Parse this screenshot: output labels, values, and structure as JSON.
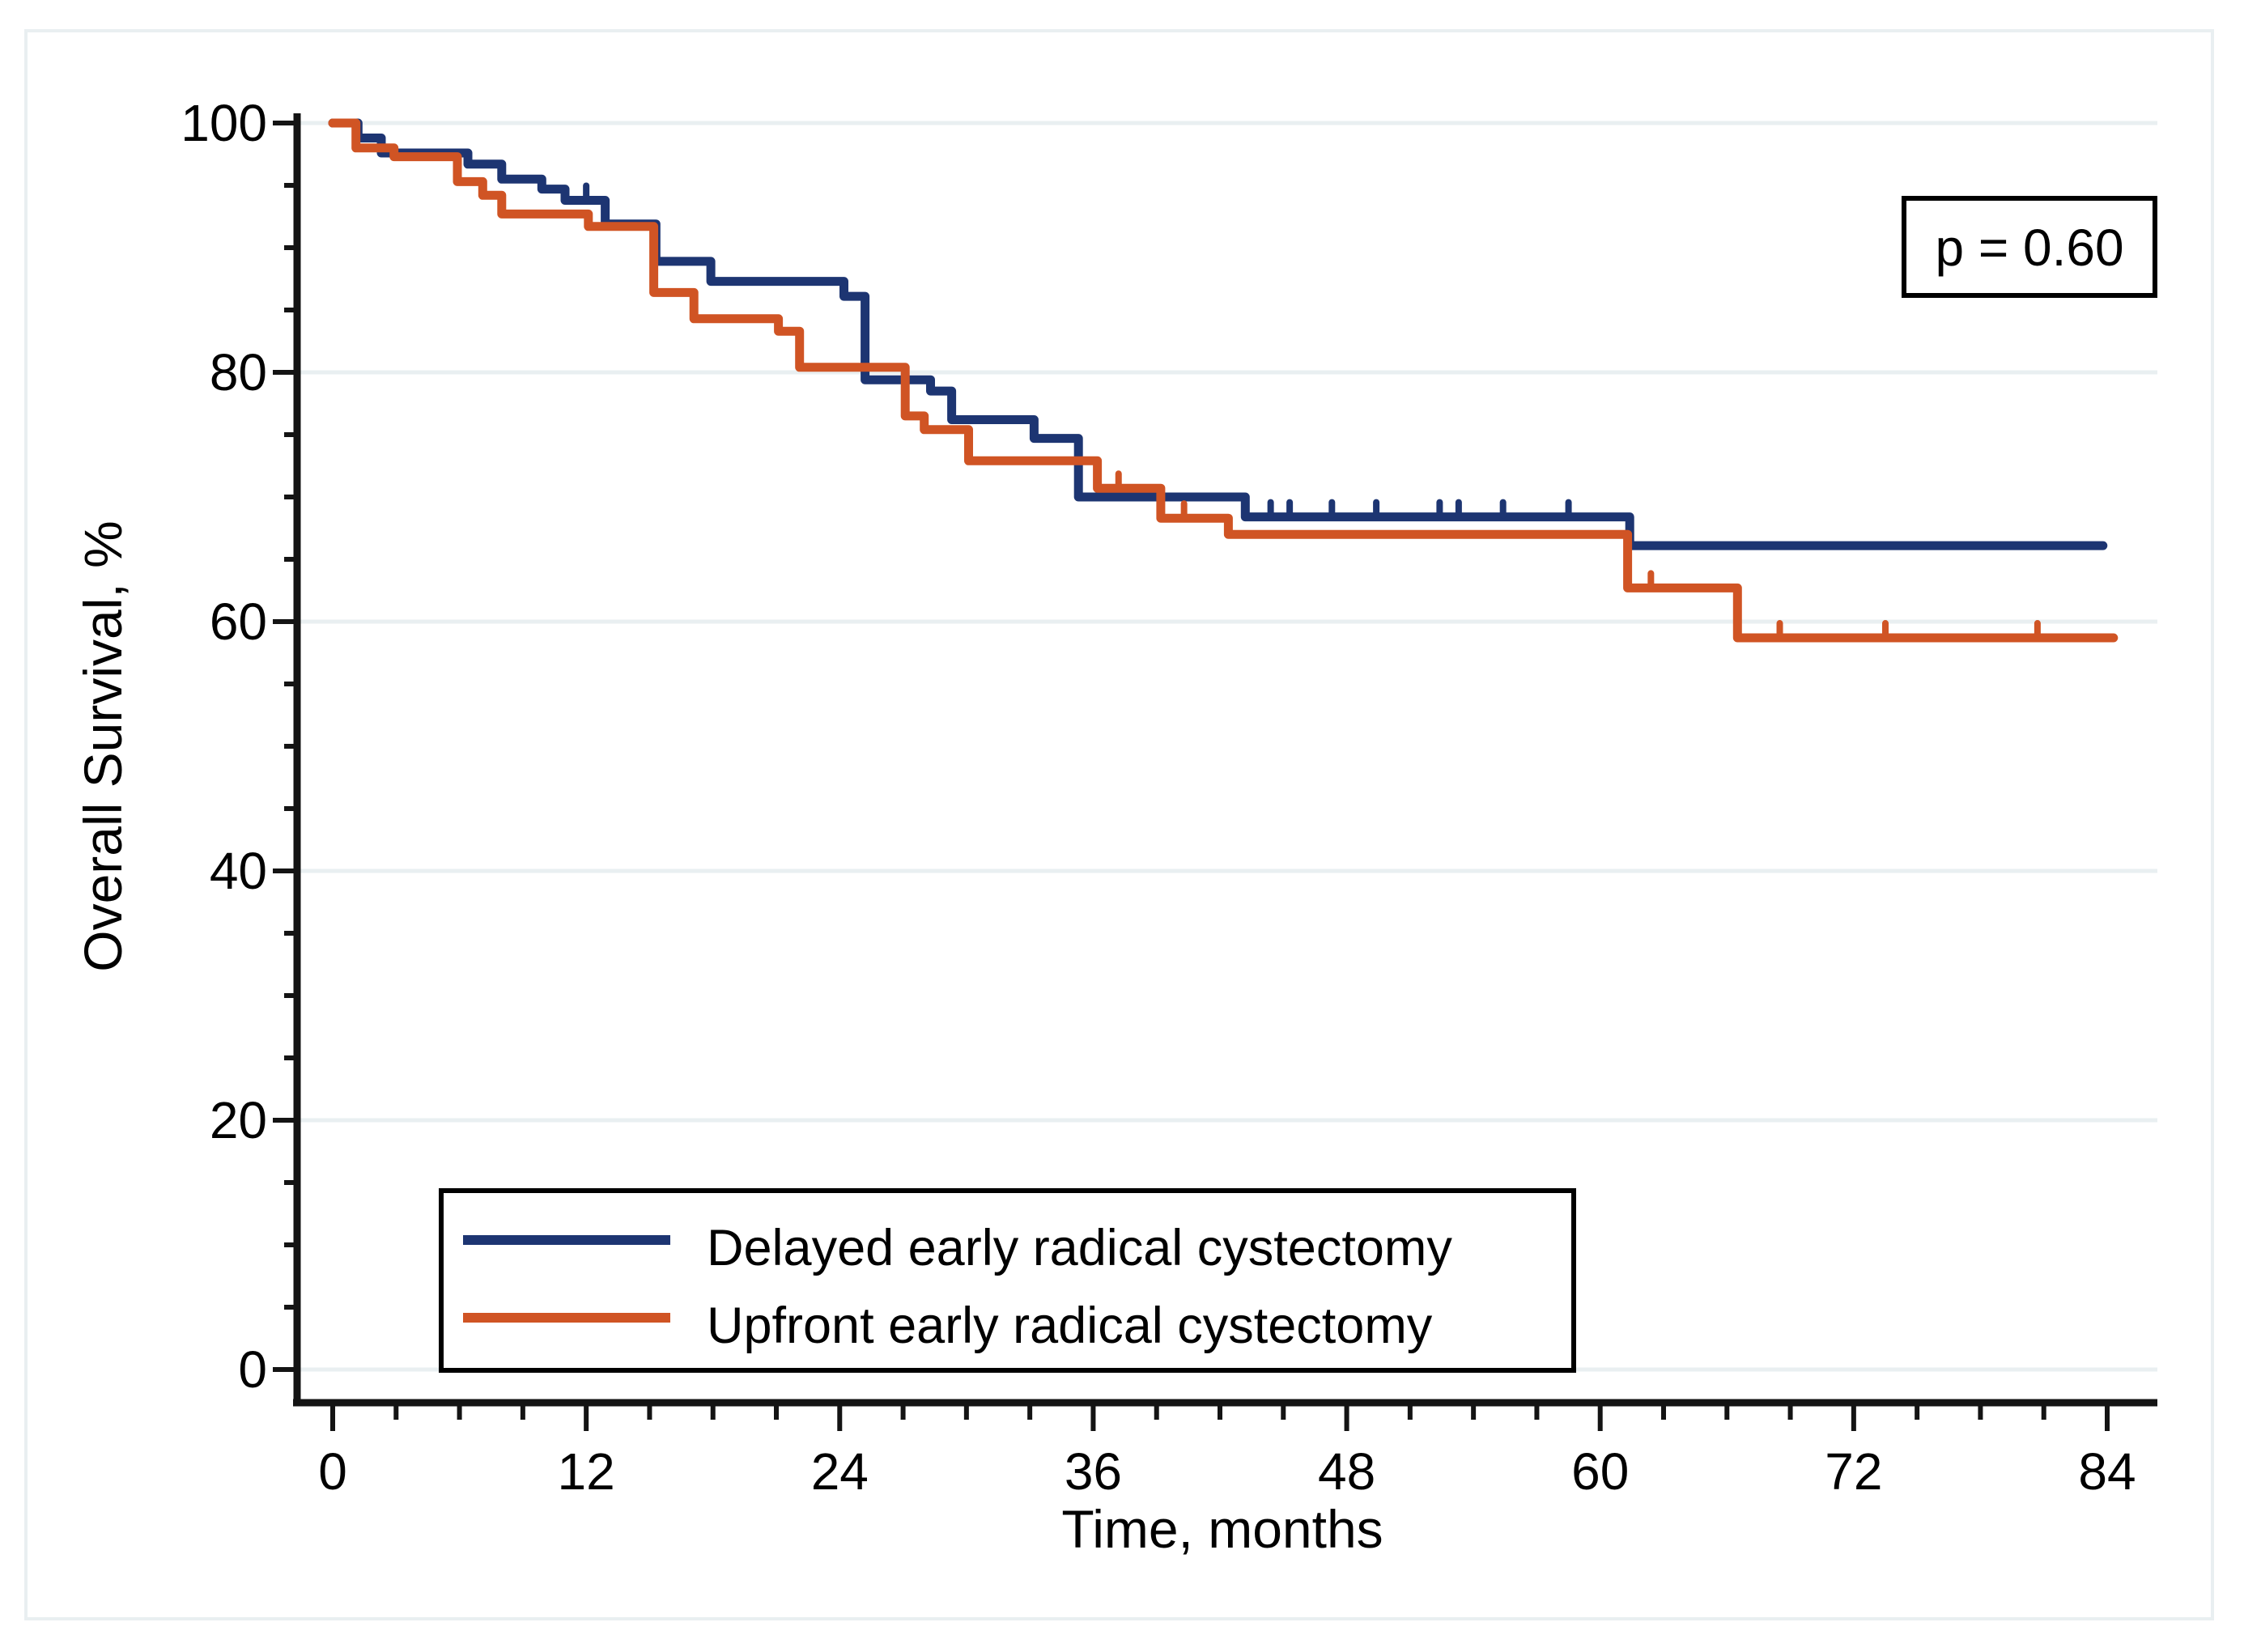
{
  "figure": {
    "p_value_label": "p = 0.60",
    "x_axis": {
      "title": "Time, months",
      "major_ticks": [
        0,
        12,
        24,
        36,
        48,
        60,
        72,
        84
      ],
      "minor_step": 3,
      "range": [
        0,
        84
      ]
    },
    "y_axis": {
      "title": "Overall Survival, %",
      "major_ticks": [
        0,
        20,
        40,
        60,
        80,
        100
      ],
      "minor_step": 5,
      "range": [
        0,
        100
      ]
    },
    "legend": [
      {
        "label": "Delayed early radical cystectomy",
        "color": "#1d3572"
      },
      {
        "label": "Upfront early radical cystectomy",
        "color": "#d05424"
      }
    ],
    "colors": {
      "grid": "#e9eff1",
      "axis": "#141414",
      "border": "#e9eff1",
      "background": "#ffffff"
    }
  },
  "chart_data": {
    "type": "line",
    "subtype": "kaplan-meier-step",
    "title": "",
    "xlabel": "Time, months",
    "ylabel": "Overall Survival, %",
    "xlim": [
      0,
      84
    ],
    "ylim": [
      0,
      100
    ],
    "grid": "horizontal-only",
    "legend_position": "bottom-left-inside",
    "annotations": [
      "p = 0.60"
    ],
    "series": [
      {
        "name": "Delayed early radical cystectomy",
        "color": "#1d3572",
        "step_points": [
          [
            0,
            100
          ],
          [
            1.2,
            100
          ],
          [
            1.2,
            98.8
          ],
          [
            2.3,
            98.8
          ],
          [
            2.3,
            97.6
          ],
          [
            6.4,
            97.6
          ],
          [
            6.4,
            96.7
          ],
          [
            8.0,
            96.7
          ],
          [
            8.0,
            95.5
          ],
          [
            9.9,
            95.5
          ],
          [
            9.9,
            94.7
          ],
          [
            11.0,
            94.7
          ],
          [
            11.0,
            93.8
          ],
          [
            12.9,
            93.8
          ],
          [
            12.9,
            91.9
          ],
          [
            15.3,
            91.9
          ],
          [
            15.3,
            88.9
          ],
          [
            17.9,
            88.9
          ],
          [
            17.9,
            87.3
          ],
          [
            24.2,
            87.3
          ],
          [
            24.2,
            86.1
          ],
          [
            25.2,
            86.1
          ],
          [
            25.2,
            79.4
          ],
          [
            28.3,
            79.4
          ],
          [
            28.3,
            78.5
          ],
          [
            29.3,
            78.5
          ],
          [
            29.3,
            76.2
          ],
          [
            33.2,
            76.2
          ],
          [
            33.2,
            74.7
          ],
          [
            35.3,
            74.7
          ],
          [
            35.3,
            70.0
          ],
          [
            43.2,
            70.0
          ],
          [
            43.2,
            68.4
          ],
          [
            61.4,
            68.4
          ],
          [
            61.4,
            66.1
          ],
          [
            83.8,
            66.1
          ]
        ],
        "censor_ticks": [
          [
            12.0,
            93.8
          ],
          [
            44.4,
            68.4
          ],
          [
            45.3,
            68.4
          ],
          [
            47.3,
            68.4
          ],
          [
            49.4,
            68.4
          ],
          [
            52.4,
            68.4
          ],
          [
            53.3,
            68.4
          ],
          [
            55.4,
            68.4
          ],
          [
            58.5,
            68.4
          ]
        ]
      },
      {
        "name": "Upfront early radical cystectomy",
        "color": "#d05424",
        "step_points": [
          [
            0,
            100
          ],
          [
            1.1,
            100
          ],
          [
            1.1,
            98.0
          ],
          [
            2.9,
            98.0
          ],
          [
            2.9,
            97.3
          ],
          [
            5.9,
            97.3
          ],
          [
            5.9,
            95.3
          ],
          [
            7.1,
            95.3
          ],
          [
            7.1,
            94.2
          ],
          [
            8.0,
            94.2
          ],
          [
            8.0,
            92.7
          ],
          [
            12.1,
            92.7
          ],
          [
            12.1,
            91.7
          ],
          [
            15.2,
            91.7
          ],
          [
            15.2,
            86.4
          ],
          [
            17.1,
            86.4
          ],
          [
            17.1,
            84.3
          ],
          [
            21.1,
            84.3
          ],
          [
            21.1,
            83.3
          ],
          [
            22.1,
            83.3
          ],
          [
            22.1,
            80.4
          ],
          [
            27.1,
            80.4
          ],
          [
            27.1,
            76.5
          ],
          [
            28.0,
            76.5
          ],
          [
            28.0,
            75.4
          ],
          [
            30.1,
            75.4
          ],
          [
            30.1,
            72.9
          ],
          [
            36.2,
            72.9
          ],
          [
            36.2,
            70.7
          ],
          [
            39.2,
            70.7
          ],
          [
            39.2,
            68.3
          ],
          [
            42.4,
            68.3
          ],
          [
            42.4,
            67.0
          ],
          [
            61.3,
            67.0
          ],
          [
            61.3,
            62.7
          ],
          [
            66.5,
            62.7
          ],
          [
            66.5,
            58.7
          ],
          [
            84.3,
            58.7
          ]
        ],
        "censor_ticks": [
          [
            37.2,
            70.7
          ],
          [
            40.3,
            68.3
          ],
          [
            62.4,
            62.7
          ],
          [
            68.5,
            58.7
          ],
          [
            73.5,
            58.7
          ],
          [
            80.7,
            58.7
          ]
        ]
      }
    ]
  }
}
